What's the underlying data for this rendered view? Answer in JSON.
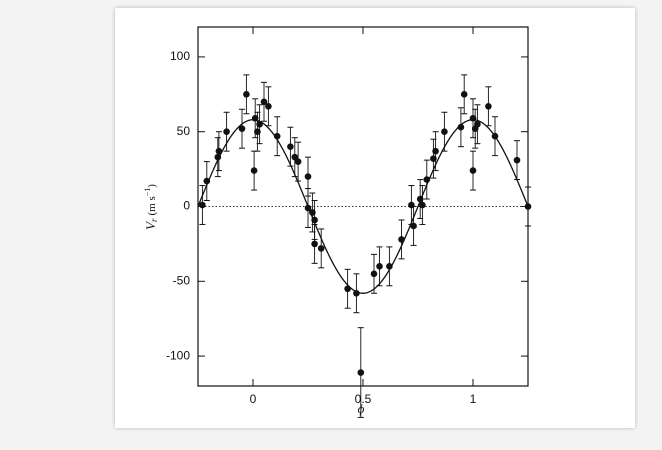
{
  "chart_data": {
    "type": "scatter",
    "xlabel": "ϕ",
    "ylabel": {
      "symbol": "V",
      "subscript": "r",
      "unit": "(m s",
      "superscript": "−1",
      "close": ")"
    },
    "x": [
      -0.23,
      -0.21,
      -0.16,
      -0.155,
      -0.12,
      -0.05,
      -0.03,
      0.005,
      0.01,
      0.02,
      0.03,
      0.05,
      0.07,
      0.11,
      0.17,
      0.19,
      0.205,
      0.25,
      0.25,
      0.27,
      0.28,
      0.28,
      0.31,
      0.43,
      0.47,
      0.49,
      0.55,
      0.575,
      0.62,
      0.675,
      0.72,
      0.73,
      0.76,
      0.77,
      0.79,
      0.82,
      0.83,
      0.87,
      0.945,
      0.96,
      1.0,
      1.0,
      1.01,
      1.02,
      1.07,
      1.1,
      1.2,
      1.25
    ],
    "values": [
      1,
      17,
      33,
      37,
      50,
      52,
      75,
      24,
      59,
      50,
      55,
      70,
      67,
      47,
      40,
      33,
      30,
      20,
      -1,
      -4,
      -9,
      -25,
      -28,
      -55,
      -58,
      -111,
      -45,
      -40,
      -40,
      -22,
      1,
      -13,
      5,
      1,
      18,
      32,
      37,
      50,
      53,
      75,
      24,
      59,
      52,
      55,
      67,
      47,
      31,
      0
    ],
    "errors": [
      13,
      13,
      13,
      13,
      13,
      13,
      13,
      13,
      13,
      13,
      13,
      13,
      13,
      13,
      13,
      13,
      13,
      13,
      13,
      13,
      13,
      13,
      13,
      13,
      13,
      30,
      13,
      13,
      13,
      13,
      13,
      13,
      13,
      13,
      13,
      13,
      13,
      13,
      13,
      13,
      13,
      13,
      13,
      13,
      13,
      13,
      13,
      13
    ],
    "color": "#111111",
    "fit_curve": {
      "amplitude": 58,
      "phase_of_max": 0
    },
    "reference_line": 0,
    "xlim": [
      -0.25,
      1.25
    ],
    "ylim": [
      -120,
      120
    ],
    "xticks": [
      0,
      0.5,
      1
    ],
    "yticks": [
      -100,
      -50,
      0,
      50,
      100
    ]
  }
}
